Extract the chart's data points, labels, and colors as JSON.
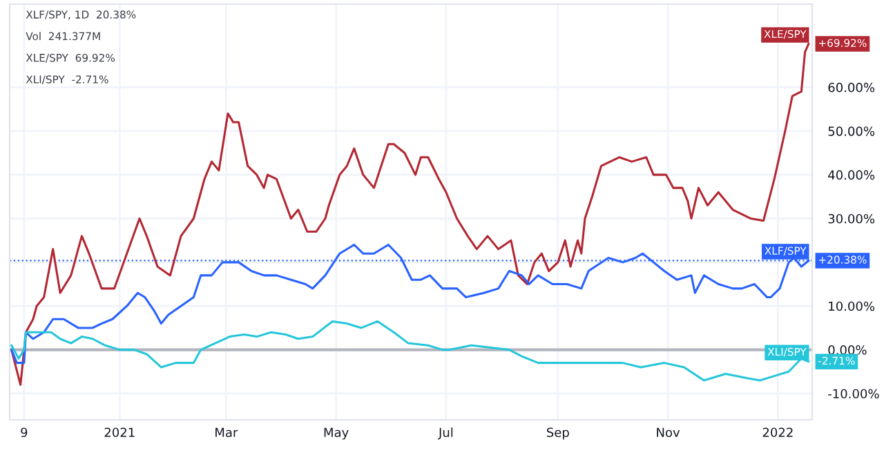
{
  "chart_data": {
    "type": "line",
    "annotations": [
      "XLF/SPY, 1D  20.38%",
      "Vol  241.377M",
      "XLE/SPY  69.92%",
      "XLI/SPY  -2.71%"
    ],
    "series": [
      {
        "name": "XLE/SPY",
        "color": "#b22833",
        "x": [
          "2020-11-02",
          "2020-11-07",
          "2020-11-10",
          "2020-11-14",
          "2020-11-16",
          "2020-11-20",
          "2020-11-25",
          "2020-11-29",
          "2020-12-05",
          "2020-12-11",
          "2020-12-15",
          "2020-12-22",
          "2020-12-29",
          "2021-01-05",
          "2021-01-12",
          "2021-01-16",
          "2021-01-22",
          "2021-01-29",
          "2021-02-04",
          "2021-02-11",
          "2021-02-17",
          "2021-02-21",
          "2021-02-25",
          "2021-03-02",
          "2021-03-05",
          "2021-03-08",
          "2021-03-13",
          "2021-03-18",
          "2021-03-22",
          "2021-03-24",
          "2021-03-29",
          "2021-04-06",
          "2021-04-10",
          "2021-04-15",
          "2021-04-20",
          "2021-04-25",
          "2021-04-27",
          "2021-05-03",
          "2021-05-07",
          "2021-05-11",
          "2021-05-16",
          "2021-05-22",
          "2021-05-30",
          "2021-06-02",
          "2021-06-08",
          "2021-06-14",
          "2021-06-17",
          "2021-06-21",
          "2021-06-27",
          "2021-07-01",
          "2021-07-07",
          "2021-07-13",
          "2021-07-18",
          "2021-07-24",
          "2021-07-30",
          "2021-08-06",
          "2021-08-10",
          "2021-08-15",
          "2021-08-19",
          "2021-08-23",
          "2021-08-27",
          "2021-09-01",
          "2021-09-05",
          "2021-09-08",
          "2021-09-12",
          "2021-09-14",
          "2021-09-16",
          "2021-09-20",
          "2021-09-25",
          "2021-10-05",
          "2021-10-12",
          "2021-10-20",
          "2021-10-24",
          "2021-10-31",
          "2021-11-04",
          "2021-11-09",
          "2021-11-12",
          "2021-11-14",
          "2021-11-18",
          "2021-11-23",
          "2021-11-29",
          "2021-12-07",
          "2021-12-17",
          "2021-12-24",
          "2021-12-30",
          "2022-01-05",
          "2022-01-09",
          "2022-01-14",
          "2022-01-16",
          "2022-01-18"
        ],
        "values": [
          0,
          -8,
          4,
          7,
          10,
          12,
          23,
          13,
          17,
          26,
          22,
          14,
          14,
          22,
          30,
          26,
          19,
          17,
          26,
          30,
          39,
          43,
          41,
          54,
          52,
          52,
          42,
          40,
          37,
          40,
          39,
          30,
          32,
          27,
          27,
          30,
          33,
          40,
          42,
          46,
          40,
          37,
          47,
          47,
          45,
          40,
          44,
          44,
          39,
          36,
          30,
          26,
          23,
          26,
          23,
          25,
          17,
          15,
          20,
          22,
          18,
          20,
          25,
          19,
          25,
          22,
          30,
          35,
          42,
          44,
          43,
          44,
          40,
          40,
          37,
          37,
          34,
          30,
          37,
          33,
          36,
          32,
          30,
          29.5,
          39,
          50,
          58,
          59,
          68,
          69.92
        ],
        "value_labels": [
          null,
          null,
          null,
          null,
          null,
          null,
          null,
          null,
          null,
          null,
          null,
          null,
          null,
          null,
          null,
          null,
          null,
          null,
          null,
          null,
          null,
          null,
          null,
          null,
          null,
          null,
          null,
          null,
          null,
          null,
          null,
          null,
          null,
          null,
          null,
          null,
          null,
          null,
          null,
          null,
          null,
          null,
          null,
          null,
          null,
          null,
          null,
          null,
          null,
          null,
          null,
          null,
          null,
          null,
          null,
          null,
          null,
          null,
          null,
          null,
          null,
          null,
          null,
          null,
          null,
          null,
          null,
          null,
          null,
          null,
          null,
          null,
          null,
          null,
          null,
          null,
          null,
          null,
          null,
          null,
          null,
          null,
          null,
          null,
          null,
          null,
          null,
          null,
          null,
          "+69.92%"
        ]
      },
      {
        "name": "XLF/SPY",
        "color": "#2962ff",
        "x": [
          "2020-11-02",
          "2020-11-05",
          "2020-11-09",
          "2020-11-10",
          "2020-11-14",
          "2020-11-20",
          "2020-11-25",
          "2020-12-01",
          "2020-12-09",
          "2020-12-17",
          "2020-12-22",
          "2020-12-28",
          "2021-01-05",
          "2021-01-11",
          "2021-01-15",
          "2021-01-20",
          "2021-01-24",
          "2021-01-28",
          "2021-02-04",
          "2021-02-11",
          "2021-02-15",
          "2021-02-21",
          "2021-02-27",
          "2021-03-03",
          "2021-03-08",
          "2021-03-15",
          "2021-03-22",
          "2021-03-29",
          "2021-04-06",
          "2021-04-14",
          "2021-04-18",
          "2021-04-25",
          "2021-05-03",
          "2021-05-11",
          "2021-05-16",
          "2021-05-22",
          "2021-05-30",
          "2021-06-06",
          "2021-06-12",
          "2021-06-17",
          "2021-06-22",
          "2021-06-29",
          "2021-07-07",
          "2021-07-12",
          "2021-07-22",
          "2021-07-30",
          "2021-08-05",
          "2021-08-12",
          "2021-08-16",
          "2021-08-21",
          "2021-08-29",
          "2021-09-06",
          "2021-09-14",
          "2021-09-18",
          "2021-09-29",
          "2021-10-07",
          "2021-10-14",
          "2021-10-18",
          "2021-10-24",
          "2021-10-30",
          "2021-11-06",
          "2021-11-14",
          "2021-11-16",
          "2021-11-21",
          "2021-11-29",
          "2021-12-07",
          "2021-12-12",
          "2021-12-19",
          "2021-12-26",
          "2021-12-28",
          "2022-01-02",
          "2022-01-07",
          "2022-01-10",
          "2022-01-14",
          "2022-01-18"
        ],
        "values": [
          0,
          -3,
          -3,
          4,
          2.5,
          4,
          7,
          7,
          5,
          5,
          6,
          7,
          10,
          13,
          12,
          9,
          6,
          8,
          10,
          12,
          17,
          17,
          20,
          20,
          20,
          18,
          17,
          17,
          16,
          15,
          14,
          17,
          22,
          24,
          22,
          22,
          24,
          21,
          16,
          16,
          17,
          14,
          14,
          12,
          13,
          14,
          18,
          17,
          15,
          17,
          15,
          15,
          14,
          18,
          21,
          20,
          21,
          22,
          20,
          18,
          16,
          17,
          13,
          17,
          15,
          14,
          14,
          15,
          12,
          12,
          14,
          20,
          21,
          19,
          20.38
        ],
        "value_labels": [
          null,
          null,
          null,
          null,
          null,
          null,
          null,
          null,
          null,
          null,
          null,
          null,
          null,
          null,
          null,
          null,
          null,
          null,
          null,
          null,
          null,
          null,
          null,
          null,
          null,
          null,
          null,
          null,
          null,
          null,
          null,
          null,
          null,
          null,
          null,
          null,
          null,
          null,
          null,
          null,
          null,
          null,
          null,
          null,
          null,
          null,
          null,
          null,
          null,
          null,
          null,
          null,
          null,
          null,
          null,
          null,
          null,
          null,
          null,
          null,
          null,
          null,
          null,
          null,
          null,
          null,
          null,
          null,
          null,
          null,
          null,
          null,
          null,
          null,
          "+20.38%"
        ]
      },
      {
        "name": "XLI/SPY",
        "color": "#26c6da",
        "x": [
          "2020-11-02",
          "2020-11-06",
          "2020-11-09",
          "2020-11-10",
          "2020-11-16",
          "2020-11-24",
          "2020-11-29",
          "2020-12-05",
          "2020-12-11",
          "2020-12-17",
          "2020-12-24",
          "2021-01-01",
          "2021-01-09",
          "2021-01-16",
          "2021-01-24",
          "2021-02-01",
          "2021-02-11",
          "2021-02-15",
          "2021-02-23",
          "2021-03-03",
          "2021-03-11",
          "2021-03-18",
          "2021-03-26",
          "2021-04-03",
          "2021-04-10",
          "2021-04-18",
          "2021-04-29",
          "2021-05-07",
          "2021-05-15",
          "2021-05-24",
          "2021-06-02",
          "2021-06-10",
          "2021-06-21",
          "2021-06-29",
          "2021-07-03",
          "2021-07-15",
          "2021-08-05",
          "2021-08-12",
          "2021-08-21",
          "2021-09-06",
          "2021-09-21",
          "2021-10-07",
          "2021-10-17",
          "2021-10-30",
          "2021-11-10",
          "2021-11-21",
          "2021-12-03",
          "2021-12-15",
          "2021-12-22",
          "2021-12-30",
          "2022-01-07",
          "2022-01-14",
          "2022-01-18"
        ],
        "values": [
          1,
          -2,
          0,
          4,
          4,
          4,
          2.5,
          1.5,
          3,
          2.5,
          1,
          0,
          0,
          -1,
          -4,
          -3,
          -3,
          0,
          1.5,
          3,
          3.5,
          3,
          4,
          3.5,
          2.5,
          3,
          6.5,
          6,
          5,
          6.5,
          4,
          1.5,
          1,
          0,
          0,
          1,
          0,
          -1.5,
          -3,
          -3,
          -3,
          -3,
          -4,
          -3,
          -4,
          -7,
          -5.5,
          -6.5,
          -7,
          -6,
          -5,
          -2,
          -2.71
        ],
        "value_labels": [
          null,
          null,
          null,
          null,
          null,
          null,
          null,
          null,
          null,
          null,
          null,
          null,
          null,
          null,
          null,
          null,
          null,
          null,
          null,
          null,
          null,
          null,
          null,
          null,
          null,
          null,
          null,
          null,
          null,
          null,
          null,
          null,
          null,
          null,
          null,
          null,
          null,
          null,
          null,
          null,
          null,
          null,
          null,
          null,
          null,
          null,
          null,
          null,
          null,
          null,
          null,
          null,
          "-2.71%"
        ]
      }
    ],
    "xlim": [
      "2020-11-01",
      "2022-01-20"
    ],
    "xticks": [
      {
        "value": "2020-11-09",
        "label": "9"
      },
      {
        "value": "2021-01-01",
        "label": "2021"
      },
      {
        "value": "2021-03-01",
        "label": "Mar"
      },
      {
        "value": "2021-05-01",
        "label": "May"
      },
      {
        "value": "2021-07-01",
        "label": "Jul"
      },
      {
        "value": "2021-09-01",
        "label": "Sep"
      },
      {
        "value": "2021-11-01",
        "label": "Nov"
      },
      {
        "value": "2022-01-01",
        "label": "2022"
      }
    ],
    "ylim": [
      -16,
      79
    ],
    "yticks": [
      {
        "value": -10,
        "label": "-10.00%"
      },
      {
        "value": 0,
        "label": "0.00%"
      },
      {
        "value": 10,
        "label": "10.00%"
      },
      {
        "value": 20,
        "label": null
      },
      {
        "value": 30,
        "label": "30.00%"
      },
      {
        "value": 40,
        "label": "40.00%"
      },
      {
        "value": 50,
        "label": "50.00%"
      },
      {
        "value": 60,
        "label": "60.00%"
      }
    ],
    "ref_lines": [
      {
        "axis": "y",
        "value": 0,
        "color": "#b2b5be",
        "line_style": "solid"
      },
      {
        "axis": "y",
        "value": 20.38,
        "color": "#2962ff",
        "line_style": "dotted"
      }
    ],
    "grid": true,
    "legend": "right",
    "marker": "none",
    "line_style": "solid"
  }
}
